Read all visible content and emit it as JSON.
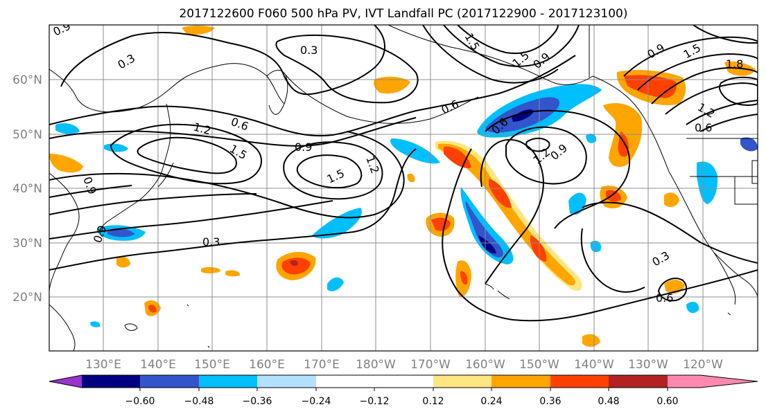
{
  "title": "2017122600 F060 500 hPa PV, IVT Landfall PC (2017122900 - 2017123100)",
  "lat_labels": [
    "60°N",
    "50°N",
    "40°N",
    "30°N",
    "20°N"
  ],
  "lon_labels": [
    "130°E",
    "140°E",
    "150°E",
    "160°E",
    "170°E",
    "180°W",
    "170°W",
    "160°W",
    "150°W",
    "140°W",
    "130°W",
    "120°W"
  ],
  "colorbar": {
    "ticks": [
      "−0.60",
      "−0.48",
      "−0.36",
      "−0.24",
      "−0.12",
      "0.12",
      "0.24",
      "0.36",
      "0.48",
      "0.60"
    ],
    "colors": [
      "#9933cc",
      "#000080",
      "#3355cc",
      "#00bfff",
      "#b3e0ff",
      "#ffffff",
      "#ffe680",
      "#ffa500",
      "#ff4000",
      "#b22222",
      "#ff88b0"
    ]
  },
  "contour_labels": {
    "c1": "0.9",
    "c2": "0.3",
    "c3": "0.3",
    "c4": "1.5",
    "c5": "1.5",
    "c6": "0.9",
    "c7": "0.6",
    "c8": "1.2",
    "c9": "1.5",
    "c10": "0.9",
    "c11": "1.5",
    "c12": "1.2",
    "c13": "0.6",
    "c14": "0.6",
    "c15": "1.2",
    "c16": "0.9",
    "c17": "0.9",
    "c18": "1.5",
    "c19": "1.8",
    "c20": "1.2",
    "c21": "0.6",
    "c22": "0.3",
    "c23": "0.3",
    "c24": "0.6",
    "c25": "0.9",
    "c26": "0.9"
  }
}
